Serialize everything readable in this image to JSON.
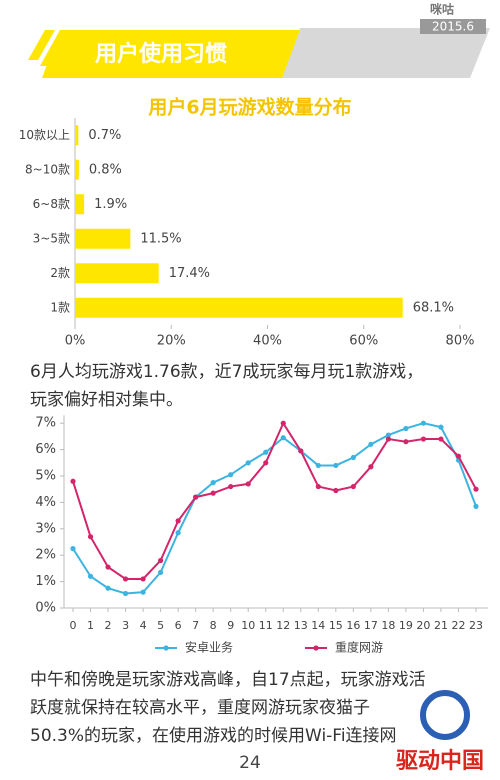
{
  "header": {
    "title": "用户使用习惯",
    "logo": "咪咕",
    "date": "2015.6"
  },
  "chart_data": [
    {
      "type": "hbar",
      "title": "用户6月玩游戏数量分布",
      "categories": [
        "10款以上",
        "8~10款",
        "6~8款",
        "3~5款",
        "2款",
        "1款"
      ],
      "values": [
        0.7,
        0.8,
        1.9,
        11.5,
        17.4,
        68.1
      ],
      "value_labels": [
        "0.7%",
        "0.8%",
        "1.9%",
        "11.5%",
        "17.4%",
        "68.1%"
      ],
      "color": "#ffe600",
      "xlim": [
        0,
        80
      ],
      "xticks": [
        {
          "value": 0,
          "label": "0%"
        },
        {
          "value": 20,
          "label": "20%"
        },
        {
          "value": 40,
          "label": "40%"
        },
        {
          "value": 60,
          "label": "60%"
        },
        {
          "value": 80,
          "label": "80%"
        }
      ]
    },
    {
      "type": "line",
      "x": [
        0,
        1,
        2,
        3,
        4,
        5,
        6,
        7,
        8,
        9,
        10,
        11,
        12,
        13,
        14,
        15,
        16,
        17,
        18,
        19,
        20,
        21,
        22,
        23
      ],
      "xlim": [
        0,
        23
      ],
      "xticks": [
        0,
        1,
        2,
        3,
        4,
        5,
        6,
        7,
        8,
        9,
        10,
        11,
        12,
        13,
        14,
        15,
        16,
        17,
        18,
        19,
        20,
        21,
        22,
        23
      ],
      "ylim": [
        0,
        7.3
      ],
      "yticks": [
        {
          "value": 0,
          "label": "0%"
        },
        {
          "value": 1,
          "label": "1%"
        },
        {
          "value": 2,
          "label": "2%"
        },
        {
          "value": 3,
          "label": "3%"
        },
        {
          "value": 4,
          "label": "4%"
        },
        {
          "value": 5,
          "label": "5%"
        },
        {
          "value": 6,
          "label": "6%"
        },
        {
          "value": 7,
          "label": "7%"
        }
      ],
      "legend": "bottom",
      "series": [
        {
          "name": "安卓业务",
          "color": "#3cb4e0",
          "values": [
            2.25,
            1.2,
            0.75,
            0.55,
            0.6,
            1.35,
            2.85,
            4.2,
            4.75,
            5.05,
            5.5,
            5.9,
            6.45,
            5.95,
            5.4,
            5.4,
            5.7,
            6.2,
            6.55,
            6.8,
            7.0,
            6.85,
            5.6,
            3.85
          ]
        },
        {
          "name": "重度网游",
          "color": "#d4246a",
          "values": [
            4.8,
            2.7,
            1.55,
            1.1,
            1.1,
            1.8,
            3.3,
            4.2,
            4.35,
            4.6,
            4.7,
            5.5,
            7.0,
            5.95,
            4.6,
            4.45,
            4.6,
            5.35,
            6.4,
            6.3,
            6.4,
            6.4,
            5.75,
            4.5
          ]
        }
      ]
    }
  ],
  "paragraphs": [
    [
      "6月人均玩游戏1.76款，近7成玩家每月玩1款游戏，",
      "玩家偏好相对集中。"
    ],
    [
      "中午和傍晚是玩家游戏高峰，自17点起，玩家游戏活",
      "跃度就保持在较高水平，重度网游玩家夜猫子",
      "50.3%的玩家，在使用游戏的时候用Wi-Fi连接网"
    ]
  ],
  "page_number": "24",
  "watermark": "驱动中国"
}
